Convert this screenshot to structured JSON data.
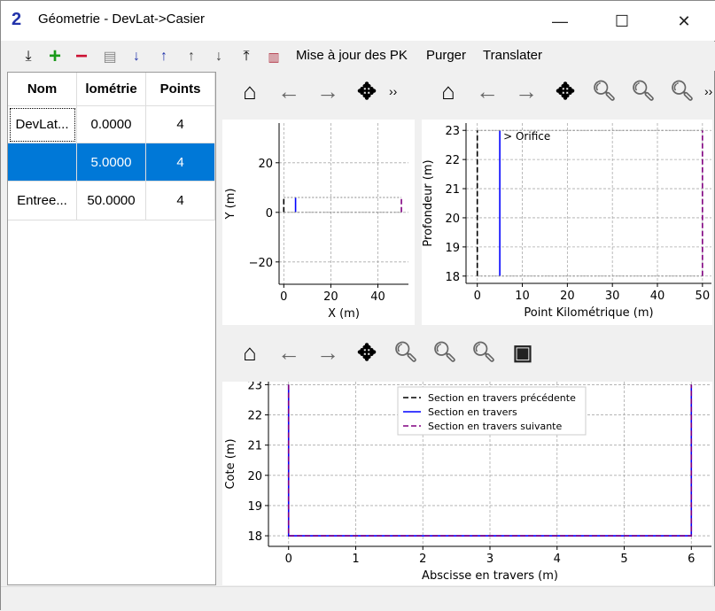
{
  "window": {
    "title": "Géometrie - DevLat->Casier",
    "minimize": "—",
    "maximize": "☐",
    "close": "✕",
    "logo": "PAM HYR 2"
  },
  "toolbar": {
    "icons": [
      "import-icon",
      "add-icon",
      "remove-icon",
      "edit-icon",
      "sort-ascending-icon",
      "sort-descending-icon",
      "move-up-icon",
      "move-down-icon",
      "export-icon",
      "sections-icon"
    ],
    "update_pk": "Mise à jour des PK",
    "purge": "Purger",
    "translate": "Translater"
  },
  "table": {
    "headers": [
      "Nom",
      "lométrie",
      "Points"
    ],
    "rows": [
      {
        "name": "DevLat...",
        "km": "0.0000",
        "points": "4"
      },
      {
        "name": "",
        "km": "5.0000",
        "points": "4",
        "selected": true
      },
      {
        "name": "Entree...",
        "km": "50.0000",
        "points": "4"
      }
    ]
  },
  "nav": {
    "home": "⌂",
    "back": "←",
    "forward": "→",
    "pan": "✥",
    "more": "››"
  },
  "accent": "#0078d7",
  "chart_data": [
    {
      "type": "line",
      "xlabel": "X (m)",
      "ylabel": "Y (m)",
      "xlim": [
        -2,
        53
      ],
      "ylim": [
        -29,
        36
      ],
      "xticks": [
        0,
        20,
        40
      ],
      "yticks": [
        -20,
        0,
        20
      ],
      "grid": true,
      "series": [
        {
          "color": "#000000",
          "dash": "dashed",
          "x": [
            0,
            0
          ],
          "y": [
            0,
            6
          ]
        },
        {
          "color": "#0000ff",
          "dash": "solid",
          "x": [
            5,
            5
          ],
          "y": [
            0,
            6
          ]
        },
        {
          "color": "#800080",
          "dash": "dashed",
          "x": [
            50,
            50
          ],
          "y": [
            0,
            6
          ]
        },
        {
          "color": "#888888",
          "dash": "dotted",
          "x": [
            0,
            50
          ],
          "y": [
            6,
            6
          ]
        },
        {
          "color": "#888888",
          "dash": "dotted",
          "x": [
            0,
            50
          ],
          "y": [
            0,
            0
          ]
        }
      ]
    },
    {
      "type": "line",
      "xlabel": "Point Kilométrique (m)",
      "ylabel": "Profondeur (m)",
      "xlim": [
        -2.5,
        52
      ],
      "ylim": [
        17.75,
        23.25
      ],
      "xticks": [
        0,
        10,
        20,
        30,
        40,
        50
      ],
      "yticks": [
        18,
        19,
        20,
        21,
        22,
        23
      ],
      "grid": true,
      "annotation": "> Orifice",
      "series": [
        {
          "color": "#000000",
          "dash": "dashed",
          "x": [
            0,
            0
          ],
          "y": [
            18,
            23
          ]
        },
        {
          "color": "#0000ff",
          "dash": "solid",
          "x": [
            5,
            5
          ],
          "y": [
            18,
            23
          ]
        },
        {
          "color": "#800080",
          "dash": "dashed",
          "x": [
            50,
            50
          ],
          "y": [
            18,
            23
          ]
        },
        {
          "color": "#888888",
          "dash": "dotted",
          "x": [
            0,
            50
          ],
          "y": [
            23,
            23
          ]
        },
        {
          "color": "#888888",
          "dash": "dotted",
          "x": [
            0,
            50
          ],
          "y": [
            18,
            18
          ]
        }
      ]
    },
    {
      "type": "line",
      "xlabel": "Abscisse en travers (m)",
      "ylabel": "Cote (m)",
      "xlim": [
        -0.3,
        6.3
      ],
      "ylim": [
        17.65,
        23.1
      ],
      "xticks": [
        0,
        1,
        2,
        3,
        4,
        5,
        6
      ],
      "yticks": [
        18,
        19,
        20,
        21,
        22,
        23
      ],
      "grid": true,
      "legend": "top-center",
      "series": [
        {
          "name": "Section en travers précédente",
          "color": "#000000",
          "dash": "dashed",
          "x": [],
          "y": []
        },
        {
          "name": "Section en travers",
          "color": "#0000ff",
          "dash": "solid",
          "x": [
            0,
            0,
            6,
            6
          ],
          "y": [
            23,
            18,
            18,
            23
          ]
        },
        {
          "name": "Section en travers suivante",
          "color": "#800080",
          "dash": "dashed",
          "x": [
            0,
            0,
            6,
            6
          ],
          "y": [
            23,
            18,
            18,
            23
          ]
        }
      ]
    }
  ]
}
